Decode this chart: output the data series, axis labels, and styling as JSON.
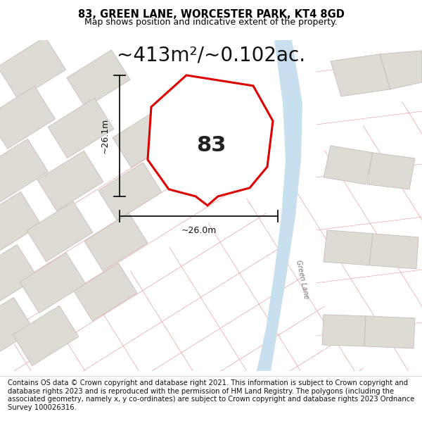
{
  "title_line1": "83, GREEN LANE, WORCESTER PARK, KT4 8GD",
  "title_line2": "Map shows position and indicative extent of the property.",
  "area_text": "~413m²/~0.102ac.",
  "property_number": "83",
  "dim_horizontal": "~26.0m",
  "dim_vertical": "~26.1m",
  "road_label": "Green Lane",
  "footer_text": "Contains OS data © Crown copyright and database right 2021. This information is subject to Crown copyright and database rights 2023 and is reproduced with the permission of HM Land Registry. The polygons (including the associated geometry, namely x, y co-ordinates) are subject to Crown copyright and database rights 2023 Ordnance Survey 100026316.",
  "bg_color": "#f2eeea",
  "road_fill": "#c8dff0",
  "property_outline_color": "#dd0000",
  "property_fill_color": "#ffffff",
  "building_fill": "#e0dcd8",
  "building_outline": "#c8b8b4",
  "street_line_color": "#e8a8a8",
  "title_fontsize": 10.5,
  "subtitle_fontsize": 9,
  "area_fontsize": 20,
  "footer_fontsize": 7.2,
  "map_bg": "#f8f5f2",
  "neighbor_fill": "#dedad4",
  "neighbor_edge": "#c8bcb8",
  "white_area": "#ffffff"
}
